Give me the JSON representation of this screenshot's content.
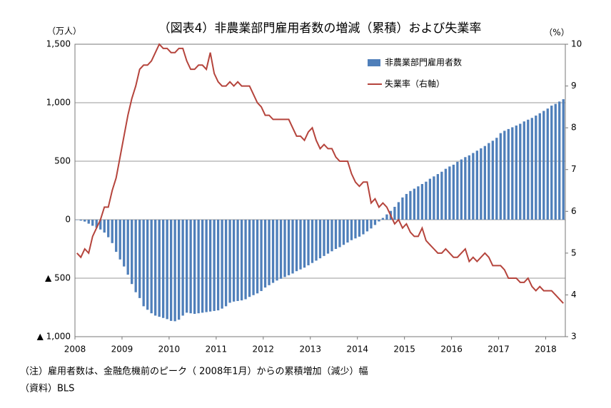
{
  "chart_data": {
    "type": "bar",
    "title": "（図表4）非農業部門雇用者数の増減（累積）および失業率",
    "y_label": "（万人）",
    "y2_label": "（%）",
    "notes": [
      "（注）雇用者数は、金融危機前のピーク（ 2008年1月）からの累積増加（減少）幅",
      "（資料）BLS"
    ],
    "categories": [
      "2008",
      null,
      null,
      null,
      null,
      null,
      null,
      null,
      null,
      null,
      null,
      null,
      "2009",
      null,
      null,
      null,
      null,
      null,
      null,
      null,
      null,
      null,
      null,
      null,
      "2010",
      null,
      null,
      null,
      null,
      null,
      null,
      null,
      null,
      null,
      null,
      null,
      "2011",
      null,
      null,
      null,
      null,
      null,
      null,
      null,
      null,
      null,
      null,
      null,
      "2012",
      null,
      null,
      null,
      null,
      null,
      null,
      null,
      null,
      null,
      null,
      null,
      "2013",
      null,
      null,
      null,
      null,
      null,
      null,
      null,
      null,
      null,
      null,
      null,
      "2014",
      null,
      null,
      null,
      null,
      null,
      null,
      null,
      null,
      null,
      null,
      null,
      "2015",
      null,
      null,
      null,
      null,
      null,
      null,
      null,
      null,
      null,
      null,
      null,
      "2016",
      null,
      null,
      null,
      null,
      null,
      null,
      null,
      null,
      null,
      null,
      null,
      "2017",
      null,
      null,
      null,
      null,
      null,
      null,
      null,
      null,
      null,
      null,
      null,
      "2018",
      null,
      null,
      null,
      null
    ],
    "series": [
      {
        "name": "非農業部門雇用者数",
        "type": "bar",
        "color": "#4f7fba",
        "values": [
          0,
          -8,
          -16,
          -34,
          -52,
          -68,
          -84,
          -110,
          -150,
          -200,
          -275,
          -340,
          -400,
          -470,
          -550,
          -620,
          -670,
          -740,
          -770,
          -800,
          -820,
          -830,
          -840,
          -850,
          -865,
          -868,
          -855,
          -820,
          -795,
          -800,
          -805,
          -800,
          -795,
          -790,
          -785,
          -780,
          -775,
          -760,
          -740,
          -710,
          -700,
          -695,
          -690,
          -680,
          -660,
          -645,
          -630,
          -610,
          -580,
          -560,
          -540,
          -520,
          -505,
          -490,
          -475,
          -460,
          -440,
          -425,
          -410,
          -390,
          -370,
          -350,
          -330,
          -310,
          -290,
          -270,
          -250,
          -235,
          -215,
          -195,
          -175,
          -160,
          -145,
          -125,
          -100,
          -75,
          -45,
          -15,
          15,
          45,
          75,
          110,
          150,
          190,
          220,
          245,
          265,
          285,
          305,
          325,
          350,
          370,
          390,
          410,
          435,
          455,
          470,
          495,
          515,
          535,
          550,
          570,
          590,
          610,
          630,
          655,
          675,
          700,
          740,
          760,
          775,
          790,
          805,
          820,
          840,
          855,
          870,
          890,
          910,
          930,
          950,
          975,
          990,
          1010,
          1030
        ]
      },
      {
        "name": "失業率（右軸）",
        "type": "line",
        "axis": "y2",
        "color": "#b5443c",
        "values": [
          5.0,
          4.9,
          5.1,
          5.0,
          5.4,
          5.6,
          5.8,
          6.1,
          6.1,
          6.5,
          6.8,
          7.3,
          7.8,
          8.3,
          8.7,
          9.0,
          9.4,
          9.5,
          9.5,
          9.6,
          9.8,
          10.0,
          9.9,
          9.9,
          9.8,
          9.8,
          9.9,
          9.9,
          9.6,
          9.4,
          9.4,
          9.5,
          9.5,
          9.4,
          9.8,
          9.3,
          9.1,
          9.0,
          9.0,
          9.1,
          9.0,
          9.1,
          9.0,
          9.0,
          9.0,
          8.8,
          8.6,
          8.5,
          8.3,
          8.3,
          8.2,
          8.2,
          8.2,
          8.2,
          8.2,
          8.0,
          7.8,
          7.8,
          7.7,
          7.9,
          8.0,
          7.7,
          7.5,
          7.6,
          7.5,
          7.5,
          7.3,
          7.2,
          7.2,
          7.2,
          6.9,
          6.7,
          6.6,
          6.7,
          6.7,
          6.2,
          6.3,
          6.1,
          6.2,
          6.1,
          5.9,
          5.7,
          5.8,
          5.6,
          5.7,
          5.5,
          5.4,
          5.4,
          5.6,
          5.3,
          5.2,
          5.1,
          5.0,
          5.0,
          5.1,
          5.0,
          4.9,
          4.9,
          5.0,
          5.1,
          4.8,
          4.9,
          4.8,
          4.9,
          5.0,
          4.9,
          4.7,
          4.7,
          4.7,
          4.6,
          4.4,
          4.4,
          4.4,
          4.3,
          4.3,
          4.4,
          4.2,
          4.1,
          4.2,
          4.1,
          4.1,
          4.1,
          4.0,
          3.9,
          3.8
        ]
      }
    ],
    "ylim": [
      -1000,
      1500
    ],
    "yticks": [
      {
        "value": -1000,
        "label": "▲ 1,000"
      },
      {
        "value": -500,
        "label": "▲ 500"
      },
      0,
      500,
      {
        "value": 1000,
        "label": "1,000"
      },
      {
        "value": 1500,
        "label": "1,500"
      }
    ],
    "y2lim": [
      3,
      10
    ],
    "y2ticks": [
      3,
      4,
      5,
      6,
      7,
      8,
      9,
      10
    ],
    "grid": true,
    "legend": "upper right"
  }
}
